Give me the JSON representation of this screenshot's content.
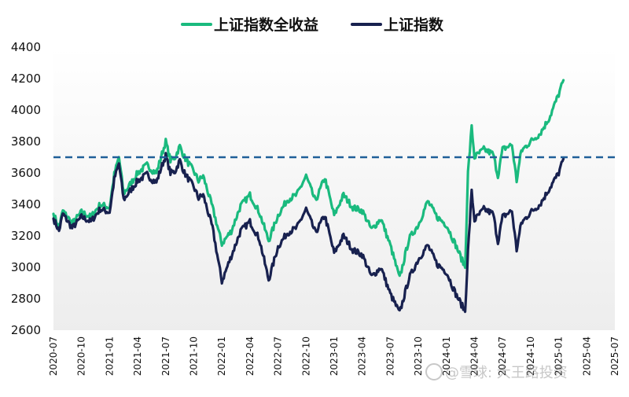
{
  "chart_data": {
    "type": "line",
    "ylim": [
      2600,
      4400
    ],
    "yticks": [
      2600,
      2800,
      3000,
      3200,
      3400,
      3600,
      3800,
      4000,
      4200,
      4400
    ],
    "xticks": [
      "2020-07",
      "2020-10",
      "2021-01",
      "2021-04",
      "2021-07",
      "2021-10",
      "2022-01",
      "2022-04",
      "2022-07",
      "2022-10",
      "2023-01",
      "2023-04",
      "2023-07",
      "2023-10",
      "2024-01",
      "2024-04",
      "2024-07",
      "2024-10",
      "2025-01",
      "2025-04",
      "2025-07"
    ],
    "reference_line": {
      "y": 3700,
      "style": "dashed",
      "color": "#1f5f99"
    },
    "grid": false,
    "legend_position": "top",
    "series": [
      {
        "name": "上证指数全收益",
        "color": "#1aba7e",
        "points": [
          [
            0,
            3340
          ],
          [
            0.6,
            3250
          ],
          [
            1,
            3360
          ],
          [
            2,
            3280
          ],
          [
            3,
            3350
          ],
          [
            4,
            3320
          ],
          [
            5,
            3400
          ],
          [
            6,
            3380
          ],
          [
            6.5,
            3590
          ],
          [
            7,
            3700
          ],
          [
            7.5,
            3470
          ],
          [
            8,
            3510
          ],
          [
            9,
            3600
          ],
          [
            10,
            3650
          ],
          [
            10.5,
            3620
          ],
          [
            11,
            3600
          ],
          [
            11.5,
            3700
          ],
          [
            12,
            3800
          ],
          [
            12.5,
            3680
          ],
          [
            13,
            3700
          ],
          [
            13.5,
            3770
          ],
          [
            14,
            3700
          ],
          [
            15,
            3610
          ],
          [
            15.5,
            3550
          ],
          [
            16,
            3580
          ],
          [
            17,
            3380
          ],
          [
            18,
            3150
          ],
          [
            19,
            3230
          ],
          [
            20,
            3390
          ],
          [
            21,
            3460
          ],
          [
            22,
            3350
          ],
          [
            23,
            3170
          ],
          [
            24,
            3330
          ],
          [
            25,
            3430
          ],
          [
            26,
            3460
          ],
          [
            27,
            3580
          ],
          [
            28,
            3420
          ],
          [
            29,
            3570
          ],
          [
            30,
            3330
          ],
          [
            31,
            3460
          ],
          [
            32,
            3380
          ],
          [
            33,
            3360
          ],
          [
            34,
            3240
          ],
          [
            35,
            3310
          ],
          [
            36,
            3140
          ],
          [
            37,
            2930
          ],
          [
            38,
            3180
          ],
          [
            39,
            3270
          ],
          [
            40,
            3420
          ],
          [
            41,
            3320
          ],
          [
            42,
            3270
          ],
          [
            43,
            3140
          ],
          [
            44,
            3000
          ],
          [
            44.3,
            3600
          ],
          [
            44.7,
            3890
          ],
          [
            45,
            3700
          ],
          [
            46,
            3750
          ],
          [
            47,
            3720
          ],
          [
            47.5,
            3580
          ],
          [
            48,
            3750
          ],
          [
            49,
            3780
          ],
          [
            49.5,
            3550
          ],
          [
            50,
            3740
          ],
          [
            51,
            3800
          ],
          [
            52,
            3850
          ],
          [
            53,
            3950
          ],
          [
            54,
            4100
          ],
          [
            54.5,
            4190
          ]
        ]
      },
      {
        "name": "上证指数",
        "color": "#18214f",
        "points": [
          [
            0,
            3310
          ],
          [
            0.6,
            3230
          ],
          [
            1,
            3340
          ],
          [
            2,
            3250
          ],
          [
            3,
            3320
          ],
          [
            4,
            3290
          ],
          [
            5,
            3370
          ],
          [
            6,
            3350
          ],
          [
            6.5,
            3560
          ],
          [
            7,
            3660
          ],
          [
            7.5,
            3430
          ],
          [
            8,
            3470
          ],
          [
            9,
            3550
          ],
          [
            10,
            3590
          ],
          [
            10.5,
            3560
          ],
          [
            11,
            3540
          ],
          [
            11.5,
            3630
          ],
          [
            12,
            3710
          ],
          [
            12.5,
            3600
          ],
          [
            13,
            3610
          ],
          [
            13.5,
            3680
          ],
          [
            14,
            3600
          ],
          [
            15,
            3510
          ],
          [
            15.5,
            3440
          ],
          [
            16,
            3460
          ],
          [
            17,
            3250
          ],
          [
            18,
            2910
          ],
          [
            19,
            3070
          ],
          [
            20,
            3230
          ],
          [
            21,
            3290
          ],
          [
            22,
            3180
          ],
          [
            23,
            2920
          ],
          [
            24,
            3130
          ],
          [
            25,
            3220
          ],
          [
            26,
            3250
          ],
          [
            27,
            3370
          ],
          [
            28,
            3220
          ],
          [
            29,
            3330
          ],
          [
            30,
            3090
          ],
          [
            31,
            3200
          ],
          [
            32,
            3110
          ],
          [
            33,
            3080
          ],
          [
            34,
            2940
          ],
          [
            35,
            3000
          ],
          [
            36,
            2830
          ],
          [
            37,
            2710
          ],
          [
            38,
            2930
          ],
          [
            39,
            3050
          ],
          [
            40,
            3140
          ],
          [
            41,
            3020
          ],
          [
            42,
            2970
          ],
          [
            43,
            2830
          ],
          [
            44,
            2720
          ],
          [
            44.3,
            3100
          ],
          [
            44.7,
            3480
          ],
          [
            45,
            3300
          ],
          [
            46,
            3370
          ],
          [
            47,
            3340
          ],
          [
            47.5,
            3160
          ],
          [
            48,
            3320
          ],
          [
            49,
            3360
          ],
          [
            49.5,
            3110
          ],
          [
            50,
            3280
          ],
          [
            51,
            3350
          ],
          [
            52,
            3400
          ],
          [
            53,
            3500
          ],
          [
            54,
            3600
          ],
          [
            54.5,
            3690
          ]
        ]
      }
    ]
  },
  "watermark": {
    "text": "@雪球: 大王路投资",
    "icon": "xueqiu-logo-icon"
  }
}
